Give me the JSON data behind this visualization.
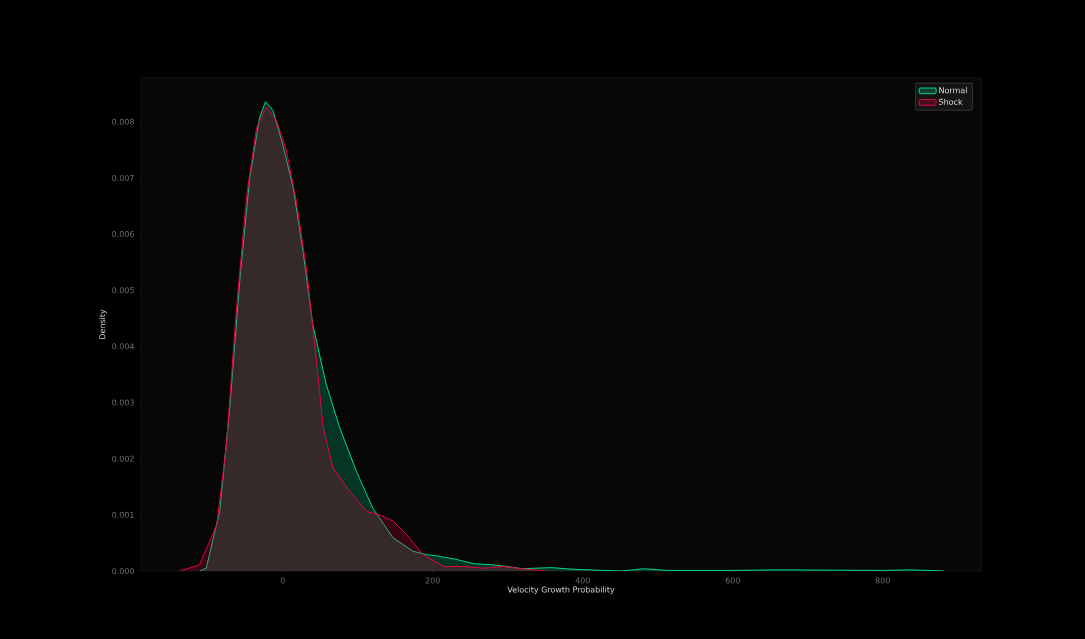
{
  "chart_data": {
    "type": "area",
    "xlabel": "Velocity Growth Probability",
    "ylabel": "Density",
    "xlim": [
      -189,
      931
    ],
    "ylim": [
      0,
      0.00878
    ],
    "xticks": [
      0,
      200,
      400,
      600,
      800
    ],
    "yticks": [
      {
        "value": 0,
        "label": "0.000"
      },
      {
        "value": 0.001,
        "label": "0.001"
      },
      {
        "value": 0.002,
        "label": "0.002"
      },
      {
        "value": 0.003,
        "label": "0.003"
      },
      {
        "value": 0.004,
        "label": "0.004"
      },
      {
        "value": 0.005,
        "label": "0.005"
      },
      {
        "value": 0.006,
        "label": "0.006"
      },
      {
        "value": 0.007,
        "label": "0.007"
      },
      {
        "value": 0.008,
        "label": "0.008"
      }
    ],
    "legend": "top right",
    "series": [
      {
        "name": "Normal",
        "color": "#00d98b",
        "x": [
          -111,
          -102,
          -84,
          -71,
          -57,
          -44,
          -31,
          -23,
          -13,
          0,
          14,
          27,
          40,
          58,
          76,
          98,
          120,
          147,
          174,
          192,
          205,
          230,
          255,
          279,
          299,
          319,
          358,
          388,
          428,
          452,
          482,
          512,
          600,
          660,
          800,
          837,
          882
        ],
        "values": [
          0,
          5e-05,
          0.00107,
          0.00285,
          0.00522,
          0.007,
          0.00807,
          0.00836,
          0.0082,
          0.0076,
          0.00682,
          0.0057,
          0.00439,
          0.00332,
          0.00255,
          0.00178,
          0.00112,
          0.00059,
          0.00035,
          0.00029,
          0.00027,
          0.00021,
          0.00013,
          0.00011,
          8e-05,
          4e-05,
          6e-05,
          3e-05,
          1e-05,
          0,
          4e-05,
          1e-05,
          1e-05,
          2e-05,
          1e-05,
          2e-05,
          0
        ]
      },
      {
        "name": "Shock",
        "color": "#e8003d",
        "x": [
          -137,
          -111,
          -88,
          -75,
          -62,
          -48,
          -35,
          -22,
          -8,
          5,
          18,
          32,
          45,
          54,
          67,
          89,
          112,
          129,
          147,
          165,
          187,
          215,
          240,
          269,
          294,
          319,
          351
        ],
        "values": [
          0,
          0.00011,
          0.00082,
          0.00225,
          0.00463,
          0.0067,
          0.00789,
          0.00826,
          0.00801,
          0.00748,
          0.00659,
          0.00534,
          0.00374,
          0.00255,
          0.00184,
          0.00142,
          0.00106,
          0.001,
          0.00089,
          0.00065,
          0.00029,
          8e-05,
          8e-05,
          5e-05,
          8e-05,
          4e-05,
          0
        ]
      }
    ]
  }
}
